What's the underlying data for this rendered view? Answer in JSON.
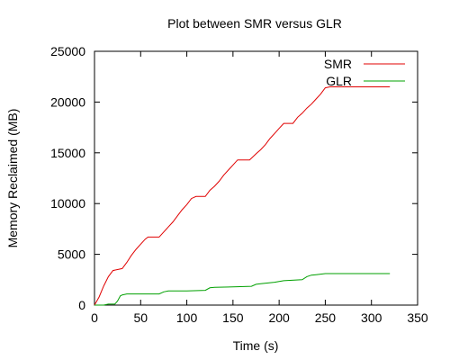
{
  "chart_data": {
    "type": "line",
    "title": "Plot between SMR versus GLR",
    "xlabel": "Time (s)",
    "ylabel": "Memory Reclaimed (MB)",
    "xlim": [
      0,
      350
    ],
    "ylim": [
      0,
      25000
    ],
    "xticks": [
      0,
      50,
      100,
      150,
      200,
      250,
      300,
      350
    ],
    "yticks": [
      0,
      5000,
      10000,
      15000,
      20000,
      25000
    ],
    "grid": false,
    "legend_position": "top-right",
    "series": [
      {
        "name": "SMR",
        "color": "#e00000",
        "points": [
          [
            0,
            0
          ],
          [
            5,
            800
          ],
          [
            10,
            1900
          ],
          [
            15,
            2800
          ],
          [
            20,
            3400
          ],
          [
            25,
            3500
          ],
          [
            30,
            3600
          ],
          [
            35,
            4200
          ],
          [
            40,
            4900
          ],
          [
            45,
            5500
          ],
          [
            50,
            6000
          ],
          [
            55,
            6500
          ],
          [
            58,
            6700
          ],
          [
            70,
            6700
          ],
          [
            75,
            7200
          ],
          [
            80,
            7700
          ],
          [
            85,
            8200
          ],
          [
            90,
            8800
          ],
          [
            95,
            9400
          ],
          [
            100,
            9900
          ],
          [
            105,
            10500
          ],
          [
            110,
            10700
          ],
          [
            120,
            10700
          ],
          [
            125,
            11300
          ],
          [
            130,
            11700
          ],
          [
            135,
            12200
          ],
          [
            140,
            12800
          ],
          [
            145,
            13300
          ],
          [
            150,
            13800
          ],
          [
            155,
            14300
          ],
          [
            168,
            14300
          ],
          [
            175,
            14900
          ],
          [
            180,
            15300
          ],
          [
            185,
            15800
          ],
          [
            190,
            16400
          ],
          [
            195,
            16900
          ],
          [
            200,
            17400
          ],
          [
            205,
            17900
          ],
          [
            215,
            17900
          ],
          [
            220,
            18500
          ],
          [
            225,
            18900
          ],
          [
            230,
            19400
          ],
          [
            235,
            19800
          ],
          [
            240,
            20300
          ],
          [
            245,
            20800
          ],
          [
            250,
            21400
          ],
          [
            255,
            21500
          ],
          [
            320,
            21500
          ]
        ]
      },
      {
        "name": "GLR",
        "color": "#00a000",
        "points": [
          [
            0,
            0
          ],
          [
            10,
            0
          ],
          [
            15,
            100
          ],
          [
            22,
            100
          ],
          [
            25,
            400
          ],
          [
            28,
            900
          ],
          [
            30,
            1000
          ],
          [
            35,
            1100
          ],
          [
            70,
            1100
          ],
          [
            75,
            1300
          ],
          [
            80,
            1400
          ],
          [
            100,
            1400
          ],
          [
            120,
            1450
          ],
          [
            125,
            1700
          ],
          [
            130,
            1750
          ],
          [
            150,
            1800
          ],
          [
            170,
            1850
          ],
          [
            175,
            2050
          ],
          [
            180,
            2100
          ],
          [
            195,
            2250
          ],
          [
            205,
            2400
          ],
          [
            225,
            2500
          ],
          [
            230,
            2800
          ],
          [
            235,
            2950
          ],
          [
            240,
            3000
          ],
          [
            250,
            3100
          ],
          [
            270,
            3100
          ],
          [
            320,
            3100
          ]
        ]
      }
    ]
  }
}
